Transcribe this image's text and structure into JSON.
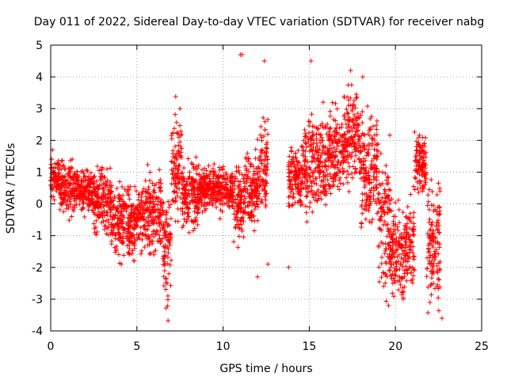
{
  "chart_data": {
    "type": "scatter",
    "title": "Day 011 of 2022, Sidereal Day-to-day VTEC variation (SDTVAR) for receiver nabg",
    "xlabel": "GPS time / hours",
    "ylabel": "SDTVAR / TECUs",
    "xlim": [
      0,
      25
    ],
    "ylim": [
      -4,
      5
    ],
    "xticks": [
      0,
      5,
      10,
      15,
      20,
      25
    ],
    "yticks": [
      -4,
      -3,
      -2,
      -1,
      0,
      1,
      2,
      3,
      4,
      5
    ],
    "grid": true,
    "marker": "+",
    "color": "#ff0000",
    "series": [
      {
        "name": "SDTVAR",
        "segments": [
          {
            "x0": 0.0,
            "x1": 0.5,
            "center": 0.8,
            "spread": 0.45
          },
          {
            "x0": 0.5,
            "x1": 1.5,
            "center": 0.5,
            "spread": 0.7
          },
          {
            "x0": 1.5,
            "x1": 2.5,
            "center": 0.4,
            "spread": 0.55
          },
          {
            "x0": 2.5,
            "x1": 3.5,
            "center": 0.1,
            "spread": 0.8
          },
          {
            "x0": 3.5,
            "x1": 4.5,
            "center": -0.5,
            "spread": 0.9
          },
          {
            "x0": 4.5,
            "x1": 5.5,
            "center": -0.6,
            "spread": 0.9
          },
          {
            "x0": 5.5,
            "x1": 6.5,
            "center": -0.3,
            "spread": 1.0
          },
          {
            "x0": 6.5,
            "x1": 7.0,
            "center": -1.3,
            "spread": 1.5
          },
          {
            "x0": 7.0,
            "x1": 7.6,
            "center": 1.2,
            "spread": 1.4
          },
          {
            "x0": 7.6,
            "x1": 8.6,
            "center": 0.3,
            "spread": 0.9
          },
          {
            "x0": 8.6,
            "x1": 10.6,
            "center": 0.5,
            "spread": 0.55
          },
          {
            "x0": 10.6,
            "x1": 11.2,
            "center": 0.0,
            "spread": 1.0
          },
          {
            "x0": 11.2,
            "x1": 12.0,
            "center": 0.4,
            "spread": 0.9
          },
          {
            "x0": 12.0,
            "x1": 12.6,
            "center": 1.2,
            "spread": 1.1
          },
          {
            "x0": 13.8,
            "x1": 14.6,
            "center": 0.8,
            "spread": 0.8
          },
          {
            "x0": 14.6,
            "x1": 16.0,
            "center": 1.3,
            "spread": 1.2
          },
          {
            "x0": 16.0,
            "x1": 17.0,
            "center": 1.6,
            "spread": 1.1
          },
          {
            "x0": 17.0,
            "x1": 18.0,
            "center": 2.1,
            "spread": 1.2
          },
          {
            "x0": 18.0,
            "x1": 19.0,
            "center": 1.0,
            "spread": 1.3
          },
          {
            "x0": 19.0,
            "x1": 19.7,
            "center": -0.5,
            "spread": 1.6
          },
          {
            "x0": 19.7,
            "x1": 20.6,
            "center": -1.6,
            "spread": 1.1
          },
          {
            "x0": 20.6,
            "x1": 21.1,
            "center": -1.2,
            "spread": 1.2
          },
          {
            "x0": 21.1,
            "x1": 21.8,
            "center": 1.3,
            "spread": 0.8
          },
          {
            "x0": 21.8,
            "x1": 22.6,
            "center": -1.2,
            "spread": 1.5
          }
        ],
        "notable_points": [
          {
            "x": 11.0,
            "y": 4.7
          },
          {
            "x": 11.1,
            "y": 4.7
          },
          {
            "x": 12.4,
            "y": 4.5
          },
          {
            "x": 15.1,
            "y": 4.5
          },
          {
            "x": 17.4,
            "y": 4.2
          },
          {
            "x": 18.1,
            "y": 4.0
          },
          {
            "x": 7.5,
            "y": 3.0
          },
          {
            "x": 12.0,
            "y": -2.3
          },
          {
            "x": 13.8,
            "y": -2.0
          },
          {
            "x": 22.0,
            "y": -3.1
          },
          {
            "x": 22.7,
            "y": -3.6
          },
          {
            "x": 19.6,
            "y": -3.2
          },
          {
            "x": 6.8,
            "y": -2.9
          },
          {
            "x": 12.6,
            "y": -1.9
          },
          {
            "x": 0.1,
            "y": 1.7
          },
          {
            "x": 4.1,
            "y": -1.9
          }
        ]
      }
    ]
  }
}
